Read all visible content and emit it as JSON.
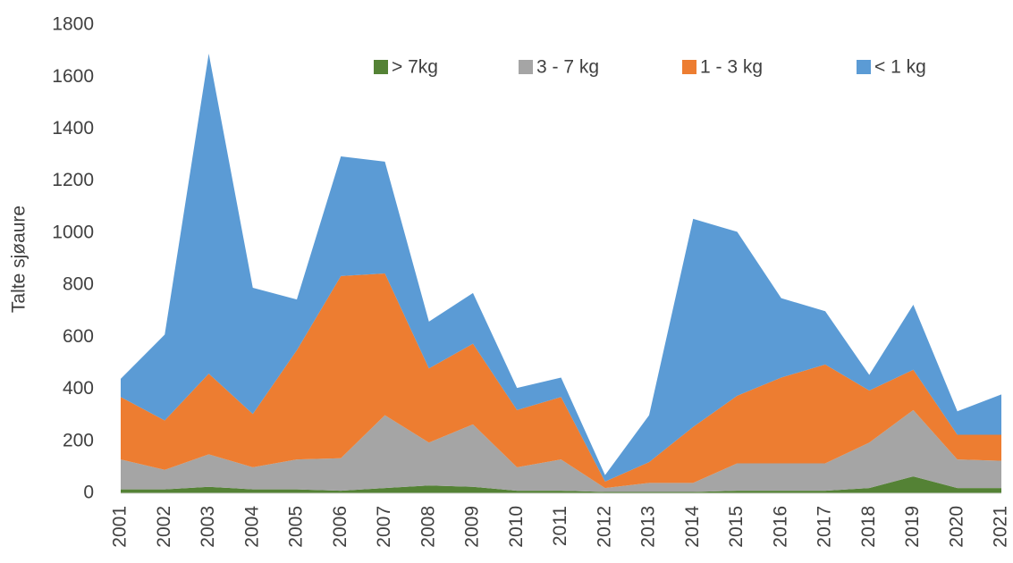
{
  "chart_data": {
    "type": "stacked_area",
    "y_label": "Talte sjøaure",
    "categories": [
      "2001",
      "2002",
      "2003",
      "2004",
      "2005",
      "2006",
      "2007",
      "2008",
      "2009",
      "2010",
      "2011",
      "2012",
      "2013",
      "2014",
      "2015",
      "2016",
      "2017",
      "2018",
      "2019",
      "2020",
      "2021"
    ],
    "series": [
      {
        "name": "> 7kg",
        "color": "#548235",
        "values": [
          15,
          15,
          25,
          15,
          15,
          10,
          20,
          30,
          25,
          10,
          10,
          5,
          5,
          5,
          10,
          10,
          10,
          20,
          65,
          20,
          20
        ]
      },
      {
        "name": "3 - 7 kg",
        "color": "#a5a5a5",
        "values": [
          115,
          75,
          125,
          85,
          115,
          125,
          280,
          165,
          240,
          90,
          120,
          15,
          35,
          35,
          105,
          105,
          105,
          175,
          255,
          110,
          105
        ]
      },
      {
        "name": "1 - 3 kg",
        "color": "#ed7d31",
        "values": [
          240,
          190,
          310,
          205,
          420,
          700,
          545,
          285,
          310,
          220,
          240,
          25,
          80,
          215,
          260,
          330,
          380,
          200,
          155,
          95,
          100
        ]
      },
      {
        "name": "< 1 kg",
        "color": "#5b9bd5",
        "values": [
          70,
          330,
          1230,
          485,
          195,
          460,
          430,
          180,
          195,
          85,
          75,
          25,
          180,
          800,
          630,
          305,
          205,
          60,
          250,
          90,
          155
        ]
      }
    ],
    "ylim": [
      0,
      1800
    ],
    "yticks": [
      0,
      200,
      400,
      600,
      800,
      1000,
      1200,
      1400,
      1600,
      1800
    ],
    "legend": "top"
  }
}
